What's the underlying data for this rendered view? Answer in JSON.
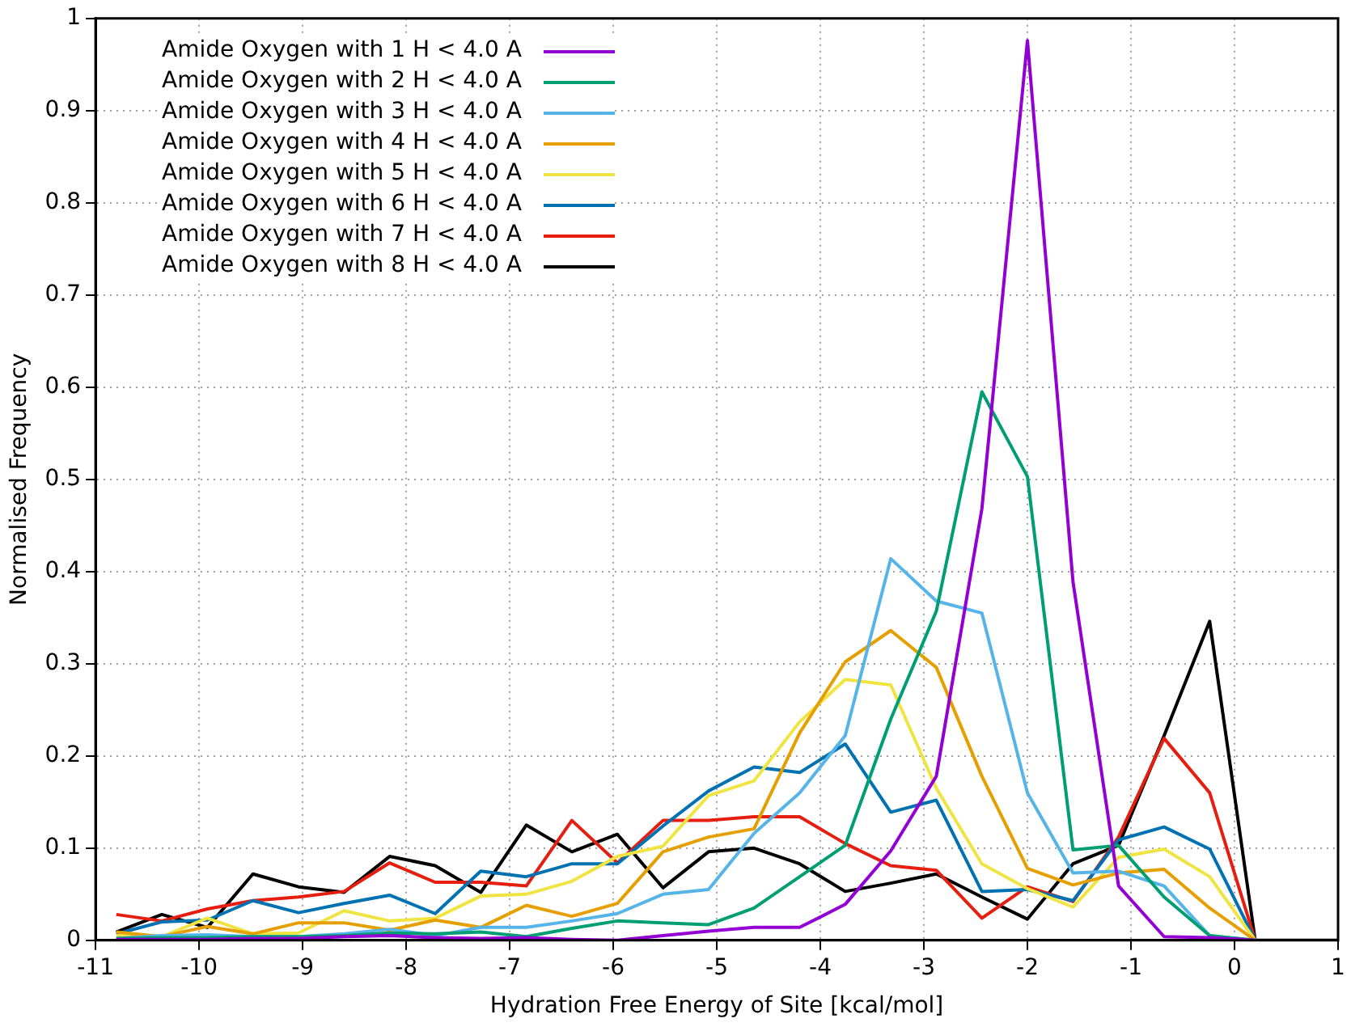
{
  "chart_data": {
    "type": "line",
    "xlabel": "Hydration Free Energy of Site [kcal/mol]",
    "ylabel": "Normalised Frequency",
    "x": [
      -10.8,
      -10.36,
      -9.92,
      -9.48,
      -9.04,
      -8.6,
      -8.16,
      -7.72,
      -7.28,
      -6.84,
      -6.4,
      -5.96,
      -5.52,
      -5.08,
      -4.64,
      -4.2,
      -3.76,
      -3.32,
      -2.88,
      -2.44,
      -2.0,
      -1.56,
      -1.12,
      -0.68,
      -0.24,
      0.2,
      0.64,
      1.0
    ],
    "series": [
      {
        "name": "Amide Oxygen with 1 H < 4.0 A",
        "color": "#9400d3",
        "values": [
          0.001,
          0.001,
          0.001,
          0.002,
          0.002,
          0.004,
          0.005,
          0.003,
          0.002,
          0.003,
          0.001,
          0.0,
          0.005,
          0.01,
          0.014,
          0.014,
          0.039,
          0.097,
          0.178,
          0.468,
          0.976,
          0.389,
          0.059,
          0.004,
          0.003,
          0,
          null,
          null
        ]
      },
      {
        "name": "Amide Oxygen with 2 H < 4.0 A",
        "color": "#009e73",
        "values": [
          0.002,
          0.003,
          0.003,
          0.004,
          0.004,
          0.005,
          0.008,
          0.007,
          0.009,
          0.004,
          0.013,
          0.021,
          0.019,
          0.017,
          0.035,
          0.069,
          0.103,
          0.24,
          0.357,
          0.595,
          0.503,
          0.098,
          0.103,
          0.047,
          0.005,
          0,
          null,
          null
        ]
      },
      {
        "name": "Amide Oxygen with 3 H < 4.0 A",
        "color": "#56b4e9",
        "values": [
          0.002,
          0.005,
          0.006,
          0.004,
          0.004,
          0.007,
          0.012,
          0.005,
          0.014,
          0.014,
          0.021,
          0.029,
          0.05,
          0.055,
          0.116,
          0.16,
          0.222,
          0.414,
          0.368,
          0.355,
          0.16,
          0.073,
          0.075,
          0.059,
          0.005,
          0,
          null,
          null
        ]
      },
      {
        "name": "Amide Oxygen with 4 H < 4.0 A",
        "color": "#e69f00",
        "values": [
          0.009,
          0.004,
          0.015,
          0.007,
          0.019,
          0.019,
          0.011,
          0.022,
          0.014,
          0.038,
          0.026,
          0.04,
          0.096,
          0.112,
          0.121,
          0.225,
          0.302,
          0.336,
          0.296,
          0.178,
          0.078,
          0.06,
          0.073,
          0.077,
          0.035,
          0,
          null,
          null
        ]
      },
      {
        "name": "Amide Oxygen with 5 H < 4.0 A",
        "color": "#f0e442",
        "values": [
          0.005,
          0.004,
          0.024,
          0.007,
          0.008,
          0.032,
          0.021,
          0.024,
          0.048,
          0.05,
          0.064,
          0.091,
          0.102,
          0.157,
          0.173,
          0.237,
          0.283,
          0.277,
          0.165,
          0.083,
          0.056,
          0.036,
          0.09,
          0.099,
          0.069,
          0,
          null,
          null
        ]
      },
      {
        "name": "Amide Oxygen with 6 H < 4.0 A",
        "color": "#0072b2",
        "values": [
          0.007,
          0.02,
          0.022,
          0.043,
          0.03,
          0.04,
          0.049,
          0.029,
          0.075,
          0.069,
          0.083,
          0.083,
          0.124,
          0.162,
          0.188,
          0.182,
          0.213,
          0.139,
          0.152,
          0.053,
          0.055,
          0.043,
          0.109,
          0.123,
          0.099,
          0,
          null,
          null
        ]
      },
      {
        "name": "Amide Oxygen with 7 H < 4.0 A",
        "color": "#e51e10",
        "values": [
          0.028,
          0.021,
          0.034,
          0.043,
          0.047,
          0.053,
          0.084,
          0.063,
          0.063,
          0.059,
          0.13,
          0.084,
          0.13,
          0.13,
          0.134,
          0.134,
          0.105,
          0.081,
          0.076,
          0.024,
          0.058,
          0.042,
          0.112,
          0.219,
          0.16,
          0,
          null,
          null
        ]
      },
      {
        "name": "Amide Oxygen with 8 H < 4.0 A",
        "color": "#000000",
        "values": [
          0.009,
          0.028,
          0.014,
          0.072,
          0.058,
          0.052,
          0.091,
          0.081,
          0.052,
          0.125,
          0.096,
          0.115,
          0.057,
          0.096,
          0.1,
          0.083,
          0.053,
          0.062,
          0.072,
          0.047,
          0.023,
          0.083,
          0.103,
          0.222,
          0.346,
          0,
          0,
          0
        ]
      }
    ],
    "xlim": [
      -11,
      1
    ],
    "xticks": [
      -11,
      -10,
      -9,
      -8,
      -7,
      -6,
      -5,
      -4,
      -3,
      -2,
      -1,
      0,
      1
    ],
    "ylim": [
      0,
      1
    ],
    "yticks": [
      0,
      0.1,
      0.2,
      0.3,
      0.4,
      0.5,
      0.6,
      0.7,
      0.8,
      0.9,
      1
    ],
    "grid": true,
    "legend": "top left",
    "marker": "none",
    "line_style": "solid"
  }
}
